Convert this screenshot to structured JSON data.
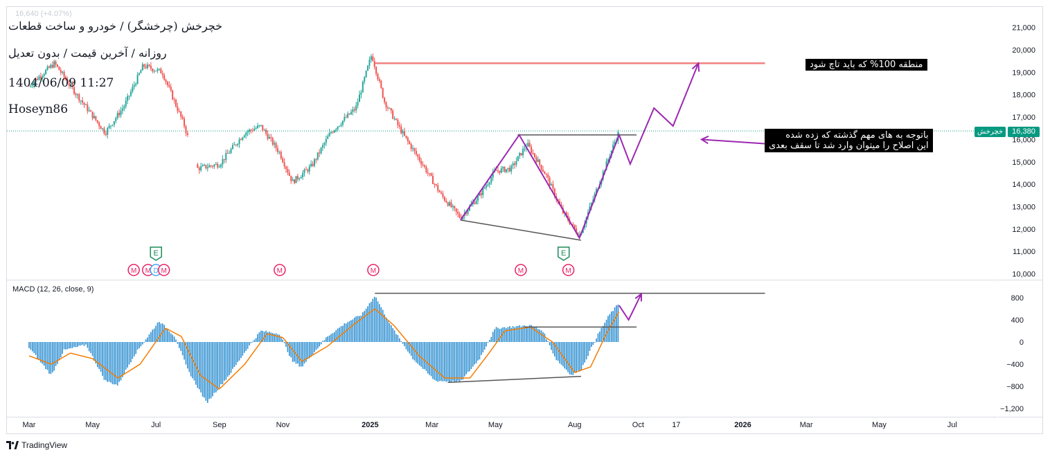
{
  "header": {
    "symbol_line": "خچرخش (چرخشگر) / خودرو و ساخت قطعات",
    "settings_line": "روزانه / آخرین قیمت / بدون تعدیل",
    "datetime": "1404/06/09 11:27",
    "author": "Hoseyn86",
    "faded_quote": "16,640 (+4.07%)"
  },
  "annotations": {
    "target_note": "منطقه 100% که باید تاچ شود",
    "breakout_note_line1": "باتوجه به های مهم گذشته که زده شده",
    "breakout_note_line2": "این اصلاح را میتوان وارد شد تا سقف بعدی"
  },
  "price_tag": {
    "label": "خچرخش",
    "value": "16,380"
  },
  "macd_label": "MACD (12, 26, close, 9)",
  "footer": {
    "brand": "TradingView"
  },
  "colors": {
    "up": "#26a69a",
    "down": "#ef5350",
    "macd_hist": "#2e8fd1",
    "signal": "#f57c00",
    "drawing": "#9c27b0",
    "target_line": "#f08080",
    "trend_line": "#555555",
    "tag_bg": "#089981"
  },
  "chart_data": [
    {
      "type": "candlestick",
      "title": "خچرخش (چرخشگر) / خودرو و ساخت قطعات",
      "timeframe": "daily",
      "y_ticks": [
        "21,000",
        "20,000",
        "19,000",
        "18,000",
        "17,000",
        "16,000",
        "15,000",
        "14,000",
        "13,000",
        "12,000",
        "11,000",
        "10,000"
      ],
      "y_tick_values": [
        21000,
        20000,
        19000,
        18000,
        17000,
        16000,
        15000,
        14000,
        13000,
        12000,
        11000,
        10000
      ],
      "ylim": [
        10000,
        21500
      ],
      "x_ticks": [
        "Mar",
        "May",
        "Jul",
        "Sep",
        "Nov",
        "2025",
        "Mar",
        "May",
        "Aug",
        "Oct",
        "17",
        "2026",
        "Mar",
        "May",
        "Jul"
      ],
      "x_tick_index": [
        0,
        2,
        4,
        6,
        8,
        10.75,
        12.7,
        14.7,
        17.2,
        19.2,
        20.4,
        22.5,
        24.5,
        26.8,
        29.1
      ],
      "last_price": 16380,
      "anchors": [
        {
          "t": 0.0,
          "p": 18400
        },
        {
          "t": 0.8,
          "p": 19400
        },
        {
          "t": 1.5,
          "p": 18000
        },
        {
          "t": 2.4,
          "p": 16300
        },
        {
          "t": 3.0,
          "p": 17500
        },
        {
          "t": 3.6,
          "p": 19300
        },
        {
          "t": 4.2,
          "p": 19000
        },
        {
          "t": 4.9,
          "p": 16600
        },
        {
          "t": 5.3,
          "p": 14700
        },
        {
          "t": 6.0,
          "p": 14900
        },
        {
          "t": 6.8,
          "p": 16300
        },
        {
          "t": 7.3,
          "p": 16600
        },
        {
          "t": 7.9,
          "p": 15400
        },
        {
          "t": 8.3,
          "p": 14100
        },
        {
          "t": 8.9,
          "p": 14800
        },
        {
          "t": 9.5,
          "p": 16300
        },
        {
          "t": 10.3,
          "p": 17400
        },
        {
          "t": 10.8,
          "p": 19800
        },
        {
          "t": 11.2,
          "p": 17700
        },
        {
          "t": 11.8,
          "p": 16200
        },
        {
          "t": 12.4,
          "p": 14900
        },
        {
          "t": 13.0,
          "p": 13500
        },
        {
          "t": 13.6,
          "p": 12500
        },
        {
          "t": 14.2,
          "p": 13500
        },
        {
          "t": 14.7,
          "p": 14600
        },
        {
          "t": 15.2,
          "p": 14700
        },
        {
          "t": 15.7,
          "p": 15800
        },
        {
          "t": 16.3,
          "p": 14400
        },
        {
          "t": 16.8,
          "p": 12800
        },
        {
          "t": 17.35,
          "p": 11700
        },
        {
          "t": 17.8,
          "p": 13400
        },
        {
          "t": 18.3,
          "p": 15300
        },
        {
          "t": 18.6,
          "p": 16380
        }
      ],
      "gap_interval": [
        5.0,
        5.3
      ],
      "markers": [
        {
          "kind": "E",
          "t": 4.0,
          "color": "#1b8a5a",
          "row": "upper"
        },
        {
          "kind": "E",
          "t": 16.85,
          "color": "#1b8a5a",
          "row": "upper"
        },
        {
          "kind": "M",
          "t": 3.3,
          "color": "#e91e63"
        },
        {
          "kind": "M",
          "t": 3.75,
          "color": "#e91e63"
        },
        {
          "kind": "D",
          "t": 4.0,
          "color": "#42a5f5"
        },
        {
          "kind": "M",
          "t": 4.25,
          "color": "#e91e63"
        },
        {
          "kind": "M",
          "t": 7.9,
          "color": "#e91e63"
        },
        {
          "kind": "M",
          "t": 10.85,
          "color": "#e91e63"
        },
        {
          "kind": "M",
          "t": 15.5,
          "color": "#e91e63"
        },
        {
          "kind": "M",
          "t": 17.0,
          "color": "#e91e63"
        }
      ],
      "drawings": {
        "target_level": 19400,
        "target_t": [
          10.9,
          23.2
        ],
        "neckline_level": 16200,
        "neckline_t": [
          15.4,
          19.15
        ],
        "support_line": [
          {
            "t": 13.6,
            "p": 12400
          },
          {
            "t": 17.4,
            "p": 11500
          }
        ],
        "zigzag_path": [
          {
            "t": 13.6,
            "p": 12400
          },
          {
            "t": 15.45,
            "p": 16200
          },
          {
            "t": 17.35,
            "p": 11600
          },
          {
            "t": 18.6,
            "p": 16200
          },
          {
            "t": 18.95,
            "p": 14900
          },
          {
            "t": 19.7,
            "p": 17400
          },
          {
            "t": 20.3,
            "p": 16600
          },
          {
            "t": 21.1,
            "p": 19400
          }
        ],
        "arrow_to": {
          "t": 21.2,
          "p": 16000
        },
        "arrow_from": {
          "t": 23.3,
          "p": 15800
        }
      }
    },
    {
      "type": "area",
      "title": "MACD (12, 26, close, 9)",
      "y_ticks": [
        "800",
        "400",
        "0",
        "−400",
        "−800",
        "−1,200"
      ],
      "y_tick_values": [
        800,
        400,
        0,
        -400,
        -800,
        -1200
      ],
      "ylim": [
        -1350,
        950
      ],
      "histogram_anchors": [
        {
          "t": 0.0,
          "v": -100
        },
        {
          "t": 0.7,
          "v": -600
        },
        {
          "t": 1.1,
          "v": -150
        },
        {
          "t": 1.8,
          "v": -50
        },
        {
          "t": 2.4,
          "v": -700
        },
        {
          "t": 2.8,
          "v": -780
        },
        {
          "t": 3.3,
          "v": -250
        },
        {
          "t": 4.1,
          "v": 380
        },
        {
          "t": 4.6,
          "v": 100
        },
        {
          "t": 5.0,
          "v": -500
        },
        {
          "t": 5.6,
          "v": -1100
        },
        {
          "t": 6.3,
          "v": -600
        },
        {
          "t": 6.9,
          "v": -100
        },
        {
          "t": 7.3,
          "v": 200
        },
        {
          "t": 7.9,
          "v": 150
        },
        {
          "t": 8.3,
          "v": -350
        },
        {
          "t": 8.6,
          "v": -450
        },
        {
          "t": 9.4,
          "v": 100
        },
        {
          "t": 10.0,
          "v": 350
        },
        {
          "t": 10.5,
          "v": 500
        },
        {
          "t": 10.9,
          "v": 840
        },
        {
          "t": 11.4,
          "v": 300
        },
        {
          "t": 12.1,
          "v": -300
        },
        {
          "t": 12.8,
          "v": -700
        },
        {
          "t": 13.6,
          "v": -720
        },
        {
          "t": 14.2,
          "v": -300
        },
        {
          "t": 14.7,
          "v": 250
        },
        {
          "t": 15.3,
          "v": 280
        },
        {
          "t": 15.8,
          "v": 300
        },
        {
          "t": 16.2,
          "v": 200
        },
        {
          "t": 16.6,
          "v": -300
        },
        {
          "t": 17.1,
          "v": -600
        },
        {
          "t": 17.4,
          "v": -500
        },
        {
          "t": 17.9,
          "v": 100
        },
        {
          "t": 18.3,
          "v": 500
        },
        {
          "t": 18.6,
          "v": 700
        }
      ],
      "signal_anchors": [
        {
          "t": 0.0,
          "v": -250
        },
        {
          "t": 0.7,
          "v": -400
        },
        {
          "t": 1.3,
          "v": -200
        },
        {
          "t": 2.0,
          "v": -300
        },
        {
          "t": 2.8,
          "v": -650
        },
        {
          "t": 3.5,
          "v": -400
        },
        {
          "t": 4.3,
          "v": 250
        },
        {
          "t": 4.8,
          "v": 100
        },
        {
          "t": 5.4,
          "v": -600
        },
        {
          "t": 6.0,
          "v": -850
        },
        {
          "t": 6.8,
          "v": -400
        },
        {
          "t": 7.5,
          "v": 150
        },
        {
          "t": 8.0,
          "v": 80
        },
        {
          "t": 8.6,
          "v": -350
        },
        {
          "t": 9.4,
          "v": -80
        },
        {
          "t": 10.2,
          "v": 300
        },
        {
          "t": 10.9,
          "v": 600
        },
        {
          "t": 11.5,
          "v": 300
        },
        {
          "t": 12.3,
          "v": -250
        },
        {
          "t": 13.1,
          "v": -650
        },
        {
          "t": 13.9,
          "v": -650
        },
        {
          "t": 14.5,
          "v": -200
        },
        {
          "t": 15.0,
          "v": 200
        },
        {
          "t": 15.8,
          "v": 270
        },
        {
          "t": 16.5,
          "v": 0
        },
        {
          "t": 17.2,
          "v": -550
        },
        {
          "t": 17.7,
          "v": -450
        },
        {
          "t": 18.2,
          "v": 150
        },
        {
          "t": 18.6,
          "v": 550
        }
      ],
      "drawings": {
        "upper_line": {
          "level": 880,
          "t": [
            10.9,
            23.2
          ]
        },
        "mid_line": {
          "level": 270,
          "t": [
            15.6,
            19.15
          ]
        },
        "lower_line": [
          {
            "t": 13.2,
            "v": -730
          },
          {
            "t": 17.4,
            "v": -620
          }
        ],
        "zigzag_path": [
          {
            "t": 18.6,
            "v": 660
          },
          {
            "t": 18.9,
            "v": 400
          },
          {
            "t": 19.3,
            "v": 870
          }
        ]
      }
    }
  ]
}
